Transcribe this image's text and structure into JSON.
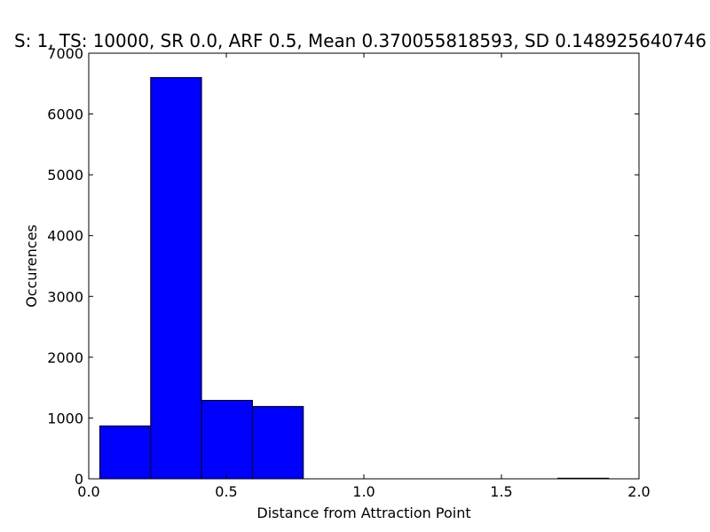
{
  "chart_data": {
    "type": "bar",
    "title": "S: 1, TS: 10000, SR 0.0, ARF 0.5, Mean 0.370055818593, SD 0.148925640746",
    "xlabel": "Distance from Attraction Point",
    "ylabel": "Occurences",
    "xlim": [
      0.0,
      2.0
    ],
    "ylim": [
      0,
      7000
    ],
    "x_ticks": [
      "0.0",
      "0.5",
      "1.0",
      "1.5",
      "2.0"
    ],
    "y_ticks": [
      "0",
      "1000",
      "2000",
      "3000",
      "4000",
      "5000",
      "6000",
      "7000"
    ],
    "bins": [
      {
        "x0": 0.04,
        "x1": 0.225,
        "value": 870
      },
      {
        "x0": 0.225,
        "x1": 0.41,
        "value": 6600
      },
      {
        "x0": 0.41,
        "x1": 0.595,
        "value": 1290
      },
      {
        "x0": 0.595,
        "x1": 0.78,
        "value": 1190
      },
      {
        "x0": 0.78,
        "x1": 0.965,
        "value": 0
      },
      {
        "x0": 0.965,
        "x1": 1.15,
        "value": 0
      },
      {
        "x0": 1.15,
        "x1": 1.335,
        "value": 0
      },
      {
        "x0": 1.335,
        "x1": 1.52,
        "value": 0
      },
      {
        "x0": 1.52,
        "x1": 1.705,
        "value": 0
      },
      {
        "x0": 1.705,
        "x1": 1.89,
        "value": 10
      }
    ],
    "bar_color": "#0000ff",
    "edge_color": "#000000",
    "grid": false,
    "legend": "none"
  }
}
